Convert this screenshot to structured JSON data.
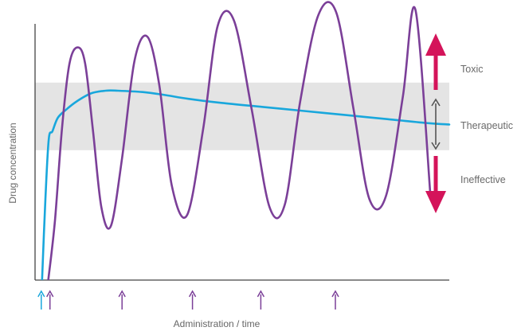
{
  "chart_data": {
    "type": "line",
    "title": "",
    "xlabel": "Administration / time",
    "ylabel": "Drug concentration",
    "xlim": [
      0,
      100
    ],
    "ylim": [
      0,
      100
    ],
    "grid": false,
    "therapeutic_window": {
      "low": 48,
      "high": 73
    },
    "zones": [
      {
        "label": "Toxic",
        "direction": "up"
      },
      {
        "label": "Therapeutic",
        "direction": "both"
      },
      {
        "label": "Ineffective",
        "direction": "down"
      }
    ],
    "series": [
      {
        "color": "#19a7dc",
        "x": [
          1.7,
          2.5,
          3.3,
          4.2,
          5.5,
          7.5,
          10,
          13.5,
          17,
          20,
          26,
          31,
          37,
          45,
          55,
          65,
          75,
          85,
          95,
          100
        ],
        "y": [
          0,
          30,
          52,
          55,
          60,
          63,
          66,
          69,
          70,
          70,
          69.5,
          68.5,
          67,
          65.5,
          64,
          62.5,
          61,
          59.5,
          58,
          57.5
        ]
      },
      {
        "color": "#7b3f98",
        "x": [
          3.2,
          4.8,
          6.5,
          8.3,
          10.3,
          12.1,
          14,
          16,
          18.3,
          21,
          24,
          27.1,
          30,
          33,
          36.7,
          40.6,
          44.1,
          48,
          52.3,
          56.6,
          60.3,
          64,
          68.4,
          72.7,
          76.9,
          80.7,
          84.7,
          88.8,
          91.8,
          95.5
        ],
        "y": [
          0,
          22,
          56,
          80,
          86,
          80,
          55,
          27,
          20,
          45,
          81,
          90,
          72,
          35,
          24,
          56,
          94,
          96,
          63,
          27,
          28,
          66,
          98,
          99,
          63,
          30,
          31,
          68,
          100,
          30
        ]
      }
    ],
    "administration_markers": [
      {
        "x": 1.5,
        "color": "#19a7dc"
      },
      {
        "x": 3.6,
        "color": "#7b3f98"
      },
      {
        "x": 21,
        "color": "#7b3f98"
      },
      {
        "x": 38,
        "color": "#7b3f98"
      },
      {
        "x": 54.5,
        "color": "#7b3f98"
      },
      {
        "x": 72.5,
        "color": "#7b3f98"
      }
    ],
    "accent_colors": {
      "warning_arrow": "#d4145a",
      "neutral_arrow": "#555555",
      "band": "#e4e4e4",
      "axis": "#444444"
    }
  }
}
